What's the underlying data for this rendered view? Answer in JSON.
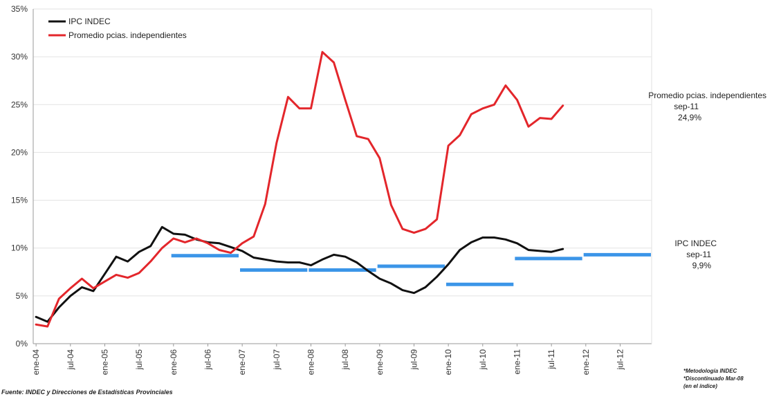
{
  "chart_data": {
    "type": "line",
    "title": "",
    "xlabel": "",
    "ylabel": "",
    "ylim": [
      0,
      35
    ],
    "y_ticks": [
      "0%",
      "5%",
      "10%",
      "15%",
      "20%",
      "25%",
      "30%",
      "35%"
    ],
    "x_tick_labels": [
      "ene-04",
      "jul-04",
      "ene-05",
      "jul-05",
      "ene-06",
      "jul-06",
      "ene-07",
      "jul-07",
      "ene-08",
      "jul-08",
      "ene-09",
      "jul-09",
      "ene-10",
      "jul-10",
      "ene-11",
      "jul-11",
      "ene-12",
      "jul-12"
    ],
    "grid": true,
    "legend_position": "top-left",
    "series": [
      {
        "name": "IPC INDEC",
        "color": "#111111",
        "x": [
          "ene-04",
          "mar-04",
          "may-04",
          "jul-04",
          "sep-04",
          "nov-04",
          "ene-05",
          "mar-05",
          "may-05",
          "jul-05",
          "sep-05",
          "nov-05",
          "ene-06",
          "mar-06",
          "may-06",
          "jul-06",
          "sep-06",
          "nov-06",
          "ene-07",
          "mar-07",
          "may-07",
          "jul-07",
          "sep-07",
          "nov-07",
          "ene-08",
          "mar-08",
          "may-08",
          "jul-08",
          "sep-08",
          "nov-08",
          "ene-09",
          "mar-09",
          "may-09",
          "jul-09",
          "sep-09",
          "nov-09",
          "ene-10",
          "mar-10",
          "may-10",
          "jul-10",
          "sep-10",
          "nov-10",
          "ene-11",
          "mar-11",
          "may-11",
          "jul-11",
          "sep-11"
        ],
        "values": [
          2.8,
          2.3,
          3.8,
          5.0,
          5.9,
          5.5,
          7.3,
          9.1,
          8.6,
          9.6,
          10.2,
          12.2,
          11.5,
          11.4,
          10.9,
          10.6,
          10.5,
          10.1,
          9.7,
          9.0,
          8.8,
          8.6,
          8.5,
          8.5,
          8.2,
          8.8,
          9.3,
          9.1,
          8.5,
          7.6,
          6.8,
          6.3,
          5.6,
          5.3,
          5.9,
          7.0,
          8.3,
          9.8,
          10.6,
          11.1,
          11.1,
          10.9,
          10.5,
          9.8,
          9.7,
          9.6,
          9.9
        ]
      },
      {
        "name": "Promedio pcias. independientes",
        "color": "#e3262b",
        "x": [
          "ene-04",
          "mar-04",
          "may-04",
          "jul-04",
          "sep-04",
          "nov-04",
          "ene-05",
          "mar-05",
          "may-05",
          "jul-05",
          "sep-05",
          "nov-05",
          "ene-06",
          "mar-06",
          "may-06",
          "jul-06",
          "sep-06",
          "nov-06",
          "ene-07",
          "mar-07",
          "may-07",
          "jul-07",
          "sep-07",
          "nov-07",
          "ene-08",
          "mar-08",
          "may-08",
          "jul-08",
          "sep-08",
          "nov-08",
          "ene-09",
          "mar-09",
          "may-09",
          "jul-09",
          "sep-09",
          "nov-09",
          "ene-10",
          "mar-10",
          "may-10",
          "jul-10",
          "sep-10",
          "nov-10",
          "ene-11",
          "mar-11",
          "may-11",
          "jul-11",
          "sep-11"
        ],
        "values": [
          2.0,
          1.8,
          4.7,
          5.8,
          6.8,
          5.8,
          6.5,
          7.2,
          6.9,
          7.4,
          8.6,
          10.0,
          11.0,
          10.6,
          11.0,
          10.5,
          9.8,
          9.5,
          10.5,
          11.2,
          14.6,
          21.0,
          25.8,
          24.6,
          24.6,
          30.5,
          29.4,
          25.5,
          21.7,
          21.4,
          19.4,
          14.5,
          12.0,
          11.6,
          12.0,
          13.0,
          20.7,
          21.8,
          24.0,
          24.6,
          25.0,
          27.0,
          25.5,
          22.7,
          23.6,
          23.5,
          24.9
        ]
      }
    ],
    "segments": [
      {
        "from": "ene-06",
        "to": "dic-06",
        "value": 9.2
      },
      {
        "from": "ene-07",
        "to": "dic-07",
        "value": 7.7
      },
      {
        "from": "ene-08",
        "to": "dic-08",
        "value": 7.7
      },
      {
        "from": "ene-09",
        "to": "dic-09",
        "value": 8.1
      },
      {
        "from": "ene-10",
        "to": "dic-10",
        "value": 6.2
      },
      {
        "from": "ene-11",
        "to": "dic-11",
        "value": 8.9
      },
      {
        "from": "ene-12",
        "to": "dic-12",
        "value": 9.3
      }
    ],
    "segments_color": "#3b95e8"
  },
  "annotations": {
    "provincias": {
      "name": "Promedio pcias. independientes",
      "date": "sep-11",
      "value": "24,9%"
    },
    "indec": {
      "name": "IPC INDEC",
      "date": "sep-11",
      "value": "9,9%"
    }
  },
  "source": "Fuente: INDEC y Direcciones de Estadísticas Provinciales",
  "notes": [
    "*Metodología INDEC",
    "*Discontinuado Mar-08",
    "(en el índice)"
  ]
}
